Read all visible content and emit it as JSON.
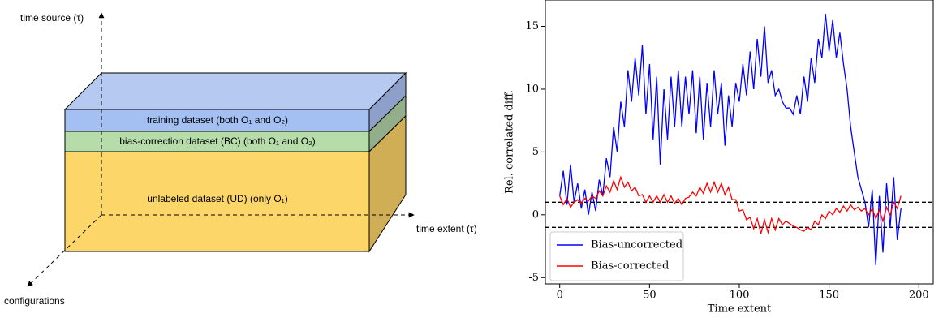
{
  "diagram": {
    "axis_labels": {
      "vertical": "time source (τ)",
      "horizontal": "time extent (τ)",
      "diagonal": "configurations"
    },
    "layers": [
      "training dataset (both O₁ and O₂)",
      "bias-correction dataset (BC) (both O₁ and O₂)",
      "unlabeled dataset (UD) (only O₁)"
    ]
  },
  "chart_data": {
    "type": "line",
    "xlabel": "Time extent",
    "ylabel": "Rel. correlated diff.",
    "x": [
      0,
      2,
      4,
      6,
      8,
      10,
      12,
      14,
      16,
      18,
      20,
      22,
      24,
      26,
      28,
      30,
      32,
      34,
      36,
      38,
      40,
      42,
      44,
      46,
      48,
      50,
      52,
      54,
      56,
      58,
      60,
      62,
      64,
      66,
      68,
      70,
      72,
      74,
      76,
      78,
      80,
      82,
      84,
      86,
      88,
      90,
      92,
      94,
      96,
      98,
      100,
      102,
      104,
      106,
      108,
      110,
      112,
      114,
      116,
      118,
      120,
      122,
      124,
      126,
      128,
      130,
      132,
      134,
      136,
      138,
      140,
      142,
      144,
      146,
      148,
      150,
      152,
      154,
      156,
      158,
      160,
      162,
      164,
      166,
      168,
      170,
      172,
      174,
      176,
      178,
      180,
      182,
      184,
      186,
      188,
      190
    ],
    "series": [
      {
        "name": "Bias-uncorrected",
        "color": "#0000ff",
        "values": [
          1.5,
          3.5,
          0.8,
          4,
          1,
          2.5,
          0.5,
          2,
          0,
          1.8,
          0.3,
          2.8,
          1.5,
          4.5,
          3,
          7,
          5,
          9,
          7,
          11.5,
          9,
          12.5,
          9.5,
          13.5,
          8,
          12,
          6,
          11,
          4,
          10,
          6,
          11,
          7,
          11.5,
          7,
          11,
          8,
          11.5,
          6.5,
          11,
          6,
          10.5,
          7,
          11.5,
          8,
          10.5,
          5.5,
          9.5,
          7,
          10.5,
          9,
          12,
          9.5,
          13,
          10,
          14,
          11,
          15,
          10.5,
          11.5,
          9.5,
          10,
          9,
          8.5,
          8.5,
          8,
          9.5,
          8,
          11,
          9,
          12.5,
          10.5,
          14,
          12.5,
          16,
          13,
          15.5,
          12.5,
          14.5,
          12,
          10,
          7,
          5,
          3,
          2,
          1,
          -1,
          2,
          -4,
          1.5,
          -3,
          2.5,
          -1,
          3,
          -2,
          0.5
        ]
      },
      {
        "name": "Bias-corrected",
        "color": "#ff0000",
        "values": [
          1.5,
          0.8,
          1.3,
          0.6,
          1,
          1.2,
          0.9,
          1.3,
          1.1,
          1.5,
          1.3,
          1.9,
          1.5,
          2.3,
          1.8,
          2.7,
          2,
          3,
          2.2,
          2.6,
          1.9,
          2.2,
          1.5,
          1.6,
          1,
          1.5,
          1,
          1.5,
          1,
          1.6,
          1,
          1.5,
          0.9,
          1.3,
          0.8,
          1.3,
          1.4,
          1.8,
          1.5,
          2.2,
          1.7,
          2.5,
          1.8,
          2.6,
          1.8,
          2.5,
          1.6,
          2.2,
          1.2,
          1.2,
          0.3,
          0.4,
          -0.4,
          -0.2,
          -1.1,
          -0.3,
          -1.5,
          -0.4,
          -1.4,
          -0.3,
          -1.2,
          -0.3,
          -0.8,
          -0.5,
          -0.7,
          -0.9,
          -1,
          -1.2,
          -1.3,
          -1,
          -1.2,
          -0.5,
          -0.8,
          0,
          -0.3,
          0.3,
          0,
          0.5,
          0.2,
          0.7,
          0.3,
          0.8,
          0.4,
          0.6,
          0.3,
          0.5,
          0,
          0.5,
          -0.3,
          0.4,
          -0.5,
          0.6,
          0,
          1,
          0.5,
          1.5
        ]
      }
    ],
    "hlines": [
      1,
      -1
    ],
    "xlim": [
      -8,
      208
    ],
    "ylim": [
      -5.5,
      17.1
    ],
    "xticks": [
      0,
      50,
      100,
      150,
      200
    ],
    "yticks": [
      -5,
      0,
      5,
      10,
      15
    ],
    "legend": "lower left"
  }
}
